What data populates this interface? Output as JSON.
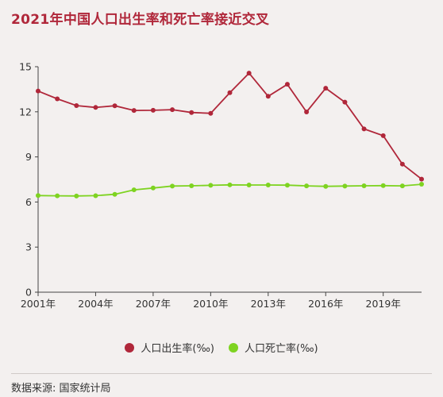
{
  "chart_data": {
    "type": "line",
    "title": "2021年中国人口出生率和死亡率接近交叉",
    "x": [
      2001,
      2002,
      2003,
      2004,
      2005,
      2006,
      2007,
      2008,
      2009,
      2010,
      2011,
      2012,
      2013,
      2014,
      2015,
      2016,
      2017,
      2018,
      2019,
      2020,
      2021
    ],
    "x_tick_labels": [
      "2001年",
      "2004年",
      "2007年",
      "2010年",
      "2013年",
      "2016年",
      "2019年"
    ],
    "y_ticks": [
      0,
      3,
      6,
      9,
      12,
      15
    ],
    "ylim": [
      0,
      15
    ],
    "grid": false,
    "legend_position": "bottom",
    "series": [
      {
        "name": "人口出生率(‰)",
        "color": "#b0273a",
        "values": [
          13.38,
          12.86,
          12.41,
          12.29,
          12.4,
          12.09,
          12.1,
          12.14,
          11.95,
          11.9,
          13.27,
          14.57,
          13.03,
          13.83,
          11.99,
          13.57,
          12.64,
          10.86,
          10.41,
          8.52,
          7.52
        ]
      },
      {
        "name": "人口死亡率(‰)",
        "color": "#7ed321",
        "values": [
          6.43,
          6.41,
          6.4,
          6.42,
          6.51,
          6.81,
          6.93,
          7.06,
          7.08,
          7.11,
          7.14,
          7.13,
          7.13,
          7.12,
          7.07,
          7.04,
          7.06,
          7.08,
          7.09,
          7.07,
          7.18
        ]
      }
    ]
  },
  "footer": {
    "source": "数据来源: 国家统计局"
  }
}
